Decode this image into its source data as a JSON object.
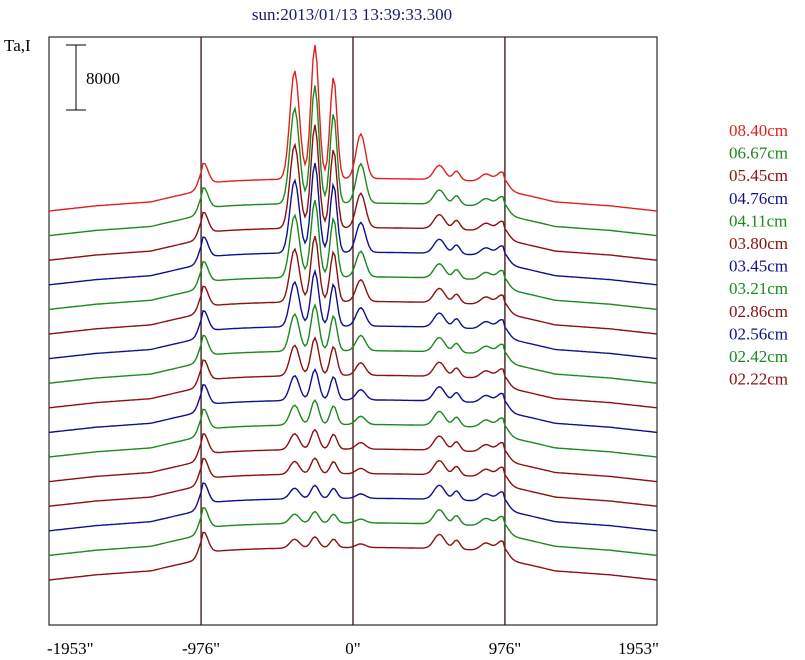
{
  "chart_data": {
    "type": "line",
    "title": "sun:2013/01/13 13:39:33.300",
    "ylabel": "Ta,I",
    "scale_bar_label": "8000",
    "scale_bar_value": 8000,
    "xlim": [
      -1953,
      1953
    ],
    "x_ticks": [
      {
        "value": -1953,
        "label": "-1953\""
      },
      {
        "value": -976,
        "label": "-976\""
      },
      {
        "value": 0,
        "label": "0\""
      },
      {
        "value": 976,
        "label": "976\""
      },
      {
        "value": 1953,
        "label": "1953\""
      }
    ],
    "vertical_lines": [
      -976,
      0,
      976
    ],
    "series": [
      {
        "name": "08.40cm",
        "color": "#e02020"
      },
      {
        "name": "06.67cm",
        "color": "#1a8a1a"
      },
      {
        "name": "05.45cm",
        "color": "#8b1010"
      },
      {
        "name": "04.76cm",
        "color": "#10108b"
      },
      {
        "name": "04.11cm",
        "color": "#1a8a1a"
      },
      {
        "name": "03.80cm",
        "color": "#8b1010"
      },
      {
        "name": "03.45cm",
        "color": "#10108b"
      },
      {
        "name": "03.21cm",
        "color": "#1a8a1a"
      },
      {
        "name": "02.86cm",
        "color": "#8b1010"
      },
      {
        "name": "02.56cm",
        "color": "#10108b"
      },
      {
        "name": "02.42cm",
        "color": "#1a8a1a"
      },
      {
        "name": "02.22cm",
        "color": "#8b1010"
      }
    ],
    "extra_traces": [
      {
        "color": "#8b1010"
      },
      {
        "color": "#10108b"
      },
      {
        "color": "#1a8a1a"
      },
      {
        "color": "#8b1010"
      }
    ]
  }
}
